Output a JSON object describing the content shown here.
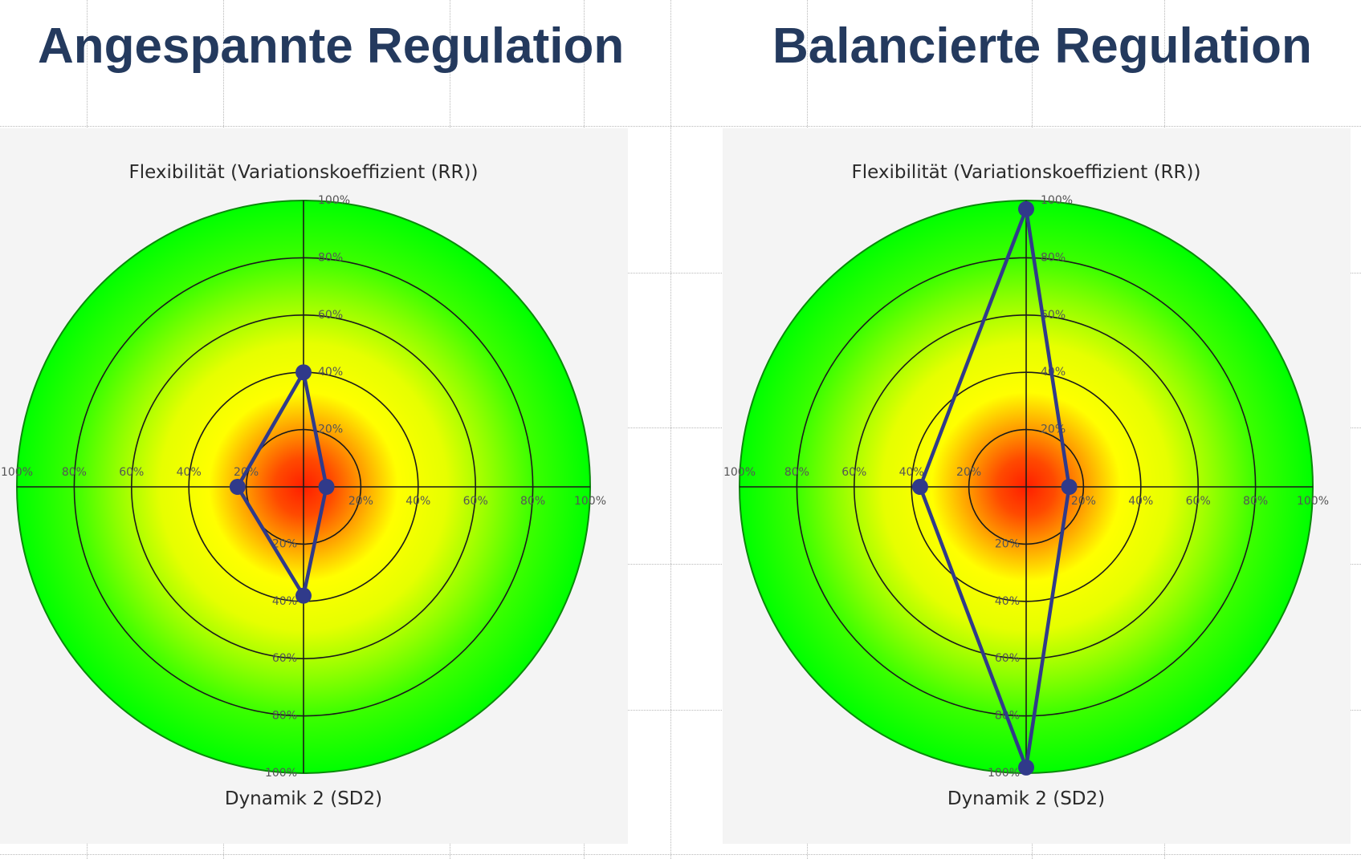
{
  "chart_data": [
    {
      "type": "radar",
      "title": "Angespannte Regulation",
      "top_label": "Flexibilität (Variationskoeffizient (RR))",
      "bottom_label": "Dynamik 2 (SD2)",
      "tick_labels": [
        "20%",
        "40%",
        "60%",
        "80%",
        "100%"
      ],
      "scale": [
        0,
        100
      ],
      "axes": [
        "top",
        "right",
        "bottom",
        "left"
      ],
      "values": [
        40,
        8,
        38,
        23
      ],
      "series_color": "#303a8a"
    },
    {
      "type": "radar",
      "title": "Balancierte Regulation",
      "top_label": "Flexibilität (Variationskoeffizient (RR))",
      "bottom_label": "Dynamik 2 (SD2)",
      "tick_labels": [
        "20%",
        "40%",
        "60%",
        "80%",
        "100%"
      ],
      "scale": [
        0,
        100
      ],
      "axes": [
        "top",
        "right",
        "bottom",
        "left"
      ],
      "values": [
        97,
        15,
        98,
        37
      ],
      "series_color": "#303a8a"
    }
  ]
}
